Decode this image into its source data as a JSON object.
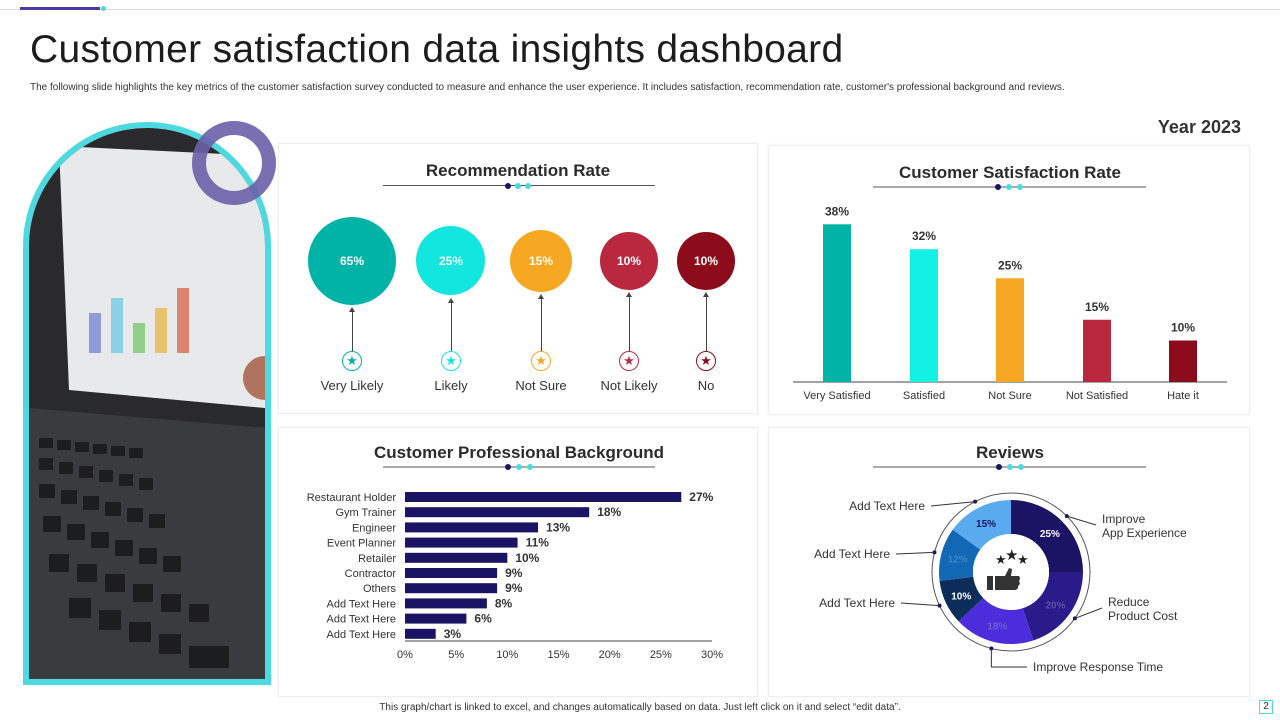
{
  "header": {
    "title": "Customer satisfaction data insights dashboard",
    "subtitle": "The following slide highlights the key metrics of the customer satisfaction survey conducted to measure and enhance the user experience. It includes satisfaction, recommendation rate, customer's professional background and reviews.",
    "year": "Year 2023"
  },
  "recommendation": {
    "title": "Recommendation Rate",
    "items": [
      {
        "label": "Very Likely",
        "value": 65,
        "display": "65%",
        "color": "#00b3a7"
      },
      {
        "label": "Likely",
        "value": 25,
        "display": "25%",
        "color": "#13e5df"
      },
      {
        "label": "Not Sure",
        "value": 15,
        "display": "15%",
        "color": "#f7a823"
      },
      {
        "label": "Not Likely",
        "value": 10,
        "display": "10%",
        "color": "#b9283f"
      },
      {
        "label": "No",
        "value": 10,
        "display": "10%",
        "color": "#8c0c1c"
      }
    ]
  },
  "footer": {
    "note": "This graph/chart is linked to excel, and changes automatically based on data. Just left click on it and select “edit data”.",
    "page": "2"
  },
  "colors": {
    "accent": "#4dd9e0",
    "navy": "#1b1464",
    "purple": "#4b3aa5"
  },
  "chart_data": [
    {
      "type": "bar",
      "title": "Customer Satisfaction Rate",
      "categories": [
        "Very Satisfied",
        "Satisfied",
        "Not Sure",
        "Not Satisfied",
        "Hate it"
      ],
      "values": [
        38,
        32,
        25,
        15,
        10
      ],
      "value_labels": [
        "38%",
        "32%",
        "25%",
        "15%",
        "10%"
      ],
      "colors": [
        "#00b3a7",
        "#13f0e4",
        "#f7a823",
        "#b9283f",
        "#8c0c1c"
      ],
      "ylim": [
        0,
        40
      ]
    },
    {
      "type": "bar",
      "orientation": "horizontal",
      "title": "Customer Professional Background",
      "categories": [
        "Restaurant Holder",
        "Gym Trainer",
        "Engineer",
        "Event Planner",
        "Retailer",
        "Contractor",
        "Others",
        "Add Text Here",
        "Add Text Here",
        "Add Text Here"
      ],
      "values": [
        27,
        18,
        13,
        11,
        10,
        9,
        9,
        8,
        6,
        3
      ],
      "value_labels": [
        "27%",
        "18%",
        "13%",
        "11%",
        "10%",
        "9%",
        "9%",
        "8%",
        "6%",
        "3%"
      ],
      "xlim": [
        0,
        30
      ],
      "xticks": [
        "0%",
        "5%",
        "10%",
        "15%",
        "20%",
        "25%",
        "30%"
      ],
      "color": "#1b1464"
    },
    {
      "type": "pie",
      "title": "Reviews",
      "slices": [
        {
          "label": "Improve App Experience",
          "value": 25,
          "display": "25%",
          "color": "#1b1464"
        },
        {
          "label": "Reduce Product Cost",
          "value": 20,
          "display": "20%",
          "color": "#2a1a8a"
        },
        {
          "label": "Improve Response Time",
          "value": 18,
          "display": "18%",
          "color": "#4b2ddb"
        },
        {
          "label": "Add Text Here",
          "value": 10,
          "display": "10%",
          "color": "#0c2d5a"
        },
        {
          "label": "Add Text Here",
          "value": 12,
          "display": "12%",
          "color": "#1368b5"
        },
        {
          "label": "Add Text Here",
          "value": 15,
          "display": "15%",
          "color": "#5aaaf0"
        }
      ]
    }
  ]
}
